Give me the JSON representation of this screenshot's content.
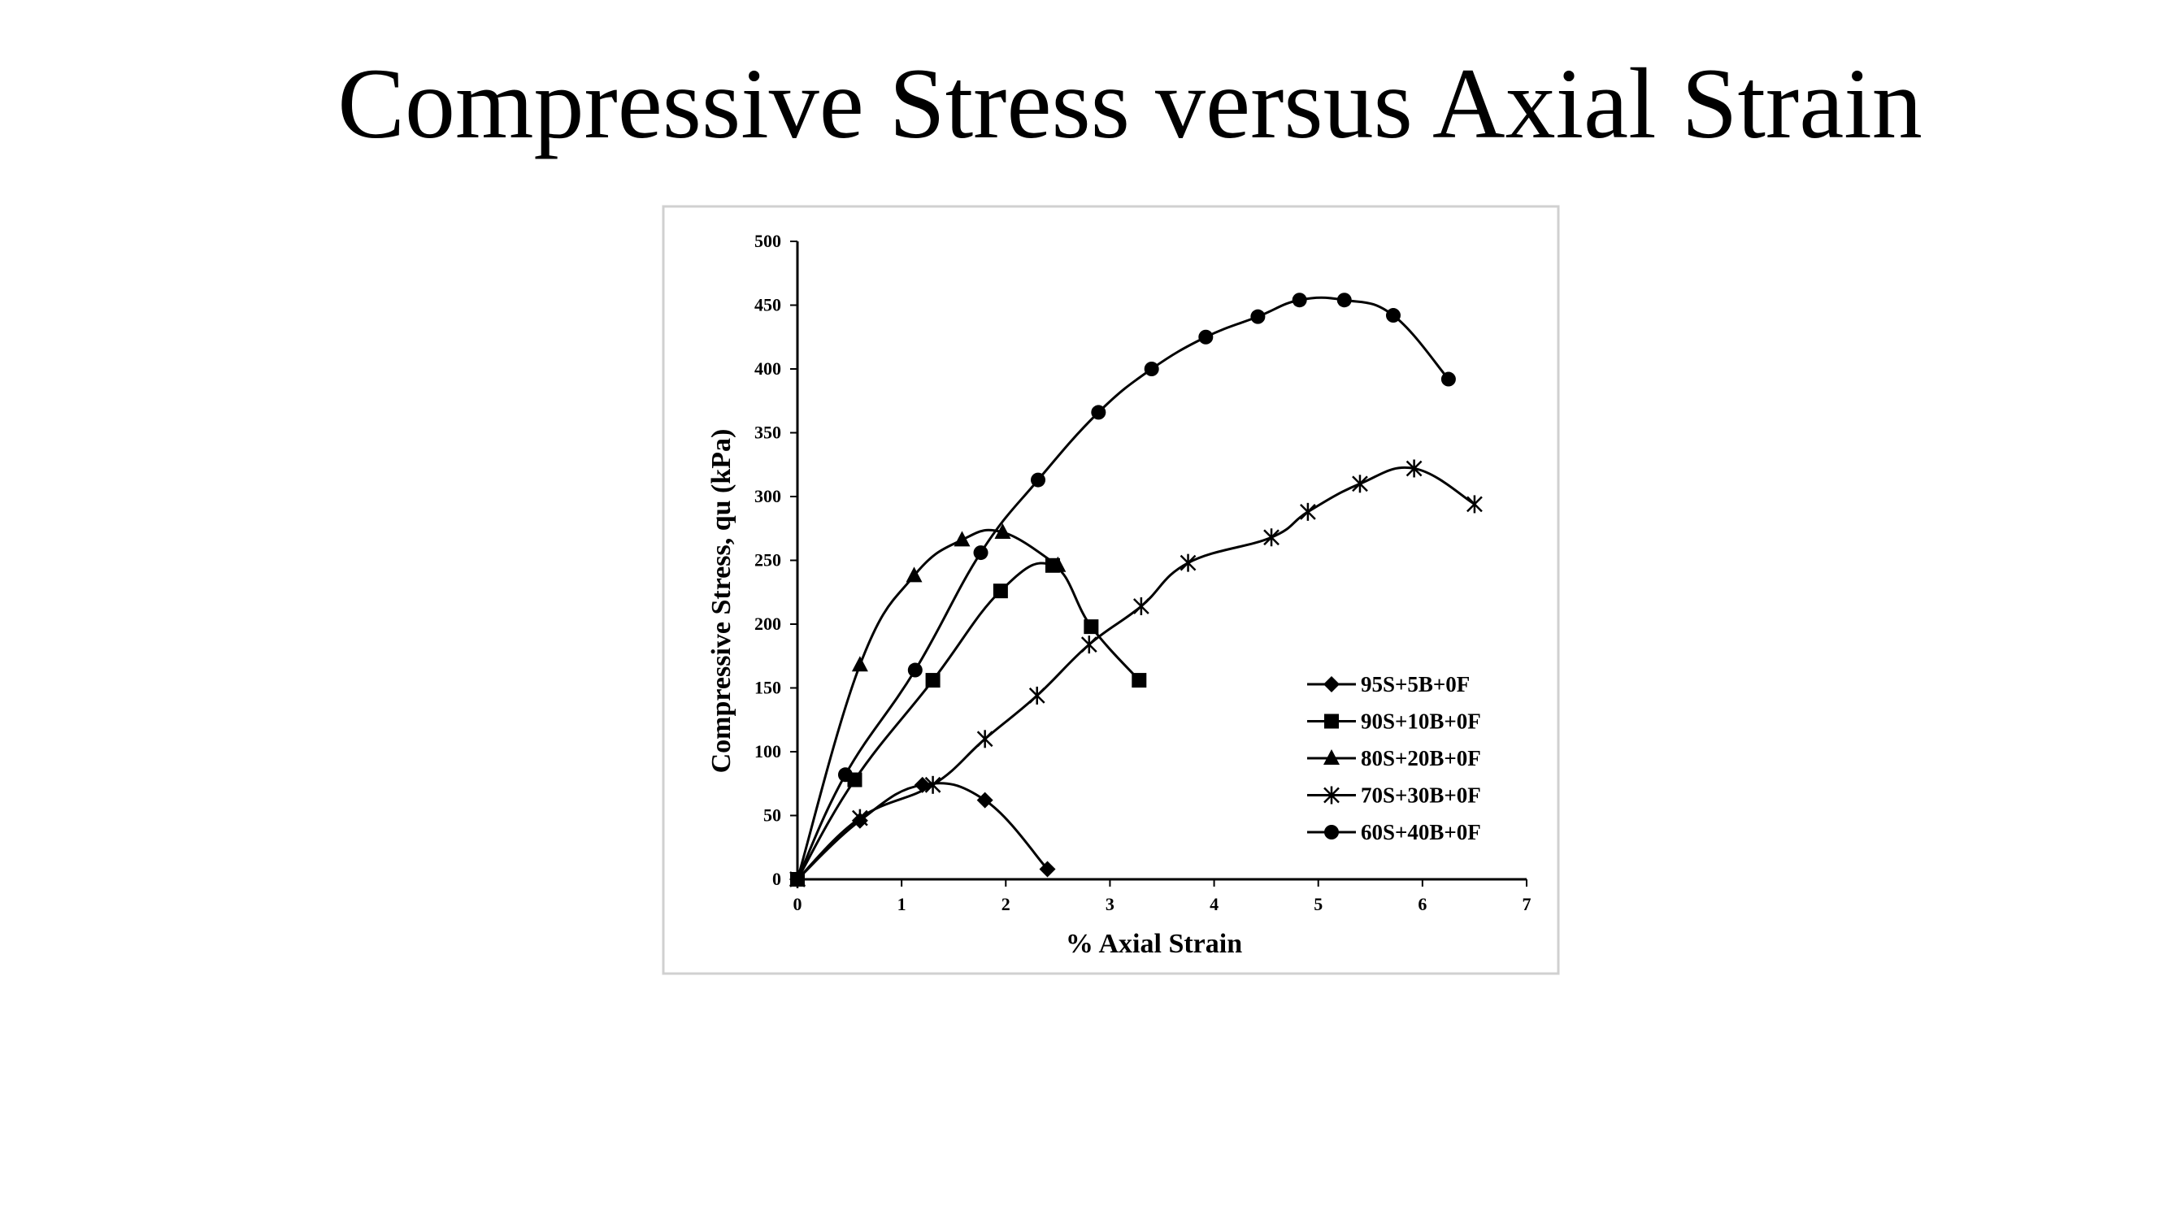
{
  "slide": {
    "title": "Compressive Stress versus Axial Strain"
  },
  "chart_data": {
    "type": "line",
    "title": "",
    "xlabel": "% Axial Strain",
    "ylabel": "Compressive Stress, qu (kPa)",
    "xlim": [
      0,
      7
    ],
    "ylim": [
      0,
      500
    ],
    "xticks": [
      "0",
      "1",
      "2",
      "3",
      "4",
      "5",
      "6",
      "7"
    ],
    "yticks": [
      "0",
      "50",
      "100",
      "150",
      "200",
      "250",
      "300",
      "350",
      "400",
      "450",
      "500"
    ],
    "grid": false,
    "legend_position": "bottom-right",
    "line_color": "#000000",
    "series": [
      {
        "name": "95S+5B+0F",
        "marker": "diamond",
        "x": [
          0,
          0.6,
          1.2,
          1.8,
          2.4
        ],
        "y": [
          0,
          46,
          74,
          62,
          8
        ]
      },
      {
        "name": "90S+10B+0F",
        "marker": "square",
        "x": [
          0,
          0.55,
          1.3,
          1.95,
          2.45,
          2.82,
          3.28
        ],
        "y": [
          0,
          78,
          156,
          226,
          246,
          198,
          156
        ]
      },
      {
        "name": "80S+20B+0F",
        "marker": "triangle",
        "x": [
          0,
          0.6,
          1.12,
          1.58,
          1.97,
          2.5
        ],
        "y": [
          0,
          168,
          238,
          266,
          272,
          246
        ]
      },
      {
        "name": "70S+30B+0F",
        "marker": "star",
        "x": [
          0,
          0.6,
          1.3,
          1.8,
          2.3,
          2.8,
          3.3,
          3.75,
          4.55,
          4.9,
          5.4,
          5.92,
          6.5
        ],
        "y": [
          0,
          48,
          74,
          110,
          144,
          184,
          214,
          248,
          268,
          288,
          310,
          322,
          294
        ]
      },
      {
        "name": "60S+40B+0F",
        "marker": "circle",
        "x": [
          0,
          0.46,
          1.13,
          1.76,
          2.31,
          2.89,
          3.4,
          3.92,
          4.42,
          4.82,
          5.25,
          5.72,
          6.25
        ],
        "y": [
          0,
          82,
          164,
          256,
          313,
          366,
          400,
          425,
          441,
          454,
          454,
          442,
          392
        ]
      }
    ]
  }
}
